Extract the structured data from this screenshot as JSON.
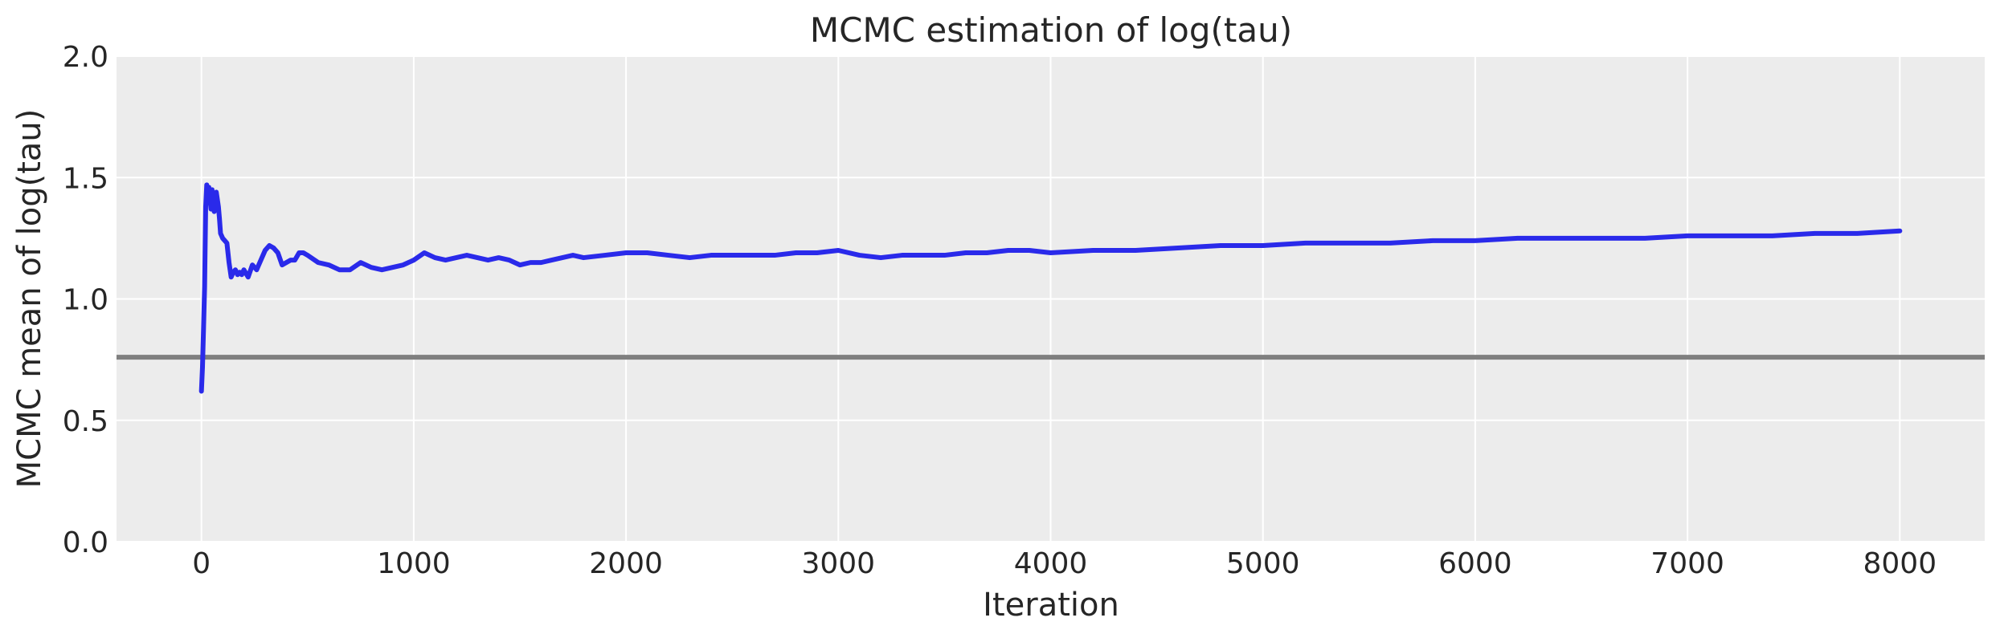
{
  "chart_data": {
    "type": "line",
    "title": "MCMC estimation of log(tau)",
    "xlabel": "Iteration",
    "ylabel": "MCMC mean of log(tau)",
    "xlim": [
      -400,
      8400
    ],
    "ylim": [
      0.0,
      2.0
    ],
    "xticks": [
      0,
      1000,
      2000,
      3000,
      4000,
      5000,
      6000,
      7000,
      8000
    ],
    "xtick_labels": [
      "0",
      "1000",
      "2000",
      "3000",
      "4000",
      "5000",
      "6000",
      "7000",
      "8000"
    ],
    "yticks": [
      0.0,
      0.5,
      1.0,
      1.5,
      2.0
    ],
    "ytick_labels": [
      "0.0",
      "0.5",
      "1.0",
      "1.5",
      "2.0"
    ],
    "grid": true,
    "colors": {
      "background": "#ececec",
      "grid": "#ffffff",
      "series": "#2a2aea",
      "reference": "#7f7f7f"
    },
    "series": [
      {
        "x": [
          0,
          5,
          10,
          15,
          20,
          25,
          30,
          35,
          40,
          45,
          50,
          55,
          60,
          65,
          70,
          75,
          80,
          85,
          90,
          95,
          100,
          110,
          120,
          130,
          140,
          150,
          160,
          170,
          180,
          190,
          200,
          220,
          240,
          260,
          280,
          300,
          320,
          340,
          360,
          380,
          400,
          420,
          440,
          460,
          480,
          500,
          550,
          600,
          650,
          700,
          750,
          800,
          850,
          900,
          950,
          1000,
          1050,
          1100,
          1150,
          1200,
          1250,
          1300,
          1350,
          1400,
          1450,
          1500,
          1550,
          1600,
          1650,
          1700,
          1750,
          1800,
          1900,
          2000,
          2100,
          2200,
          2300,
          2400,
          2500,
          2600,
          2700,
          2800,
          2900,
          3000,
          3100,
          3200,
          3300,
          3400,
          3500,
          3600,
          3700,
          3800,
          3900,
          4000,
          4200,
          4400,
          4600,
          4800,
          5000,
          5200,
          5400,
          5600,
          5800,
          6000,
          6200,
          6400,
          6600,
          6800,
          7000,
          7200,
          7400,
          7600,
          7800,
          8000
        ],
        "y": [
          0.62,
          0.72,
          0.88,
          1.05,
          1.38,
          1.47,
          1.4,
          1.46,
          1.42,
          1.37,
          1.45,
          1.39,
          1.36,
          1.43,
          1.44,
          1.41,
          1.38,
          1.33,
          1.27,
          1.26,
          1.25,
          1.24,
          1.23,
          1.15,
          1.09,
          1.11,
          1.12,
          1.1,
          1.11,
          1.1,
          1.12,
          1.09,
          1.14,
          1.12,
          1.16,
          1.2,
          1.22,
          1.21,
          1.19,
          1.14,
          1.15,
          1.16,
          1.16,
          1.19,
          1.19,
          1.18,
          1.15,
          1.14,
          1.12,
          1.12,
          1.15,
          1.13,
          1.12,
          1.13,
          1.14,
          1.16,
          1.19,
          1.17,
          1.16,
          1.17,
          1.18,
          1.17,
          1.16,
          1.17,
          1.16,
          1.14,
          1.15,
          1.15,
          1.16,
          1.17,
          1.18,
          1.17,
          1.18,
          1.19,
          1.19,
          1.18,
          1.17,
          1.18,
          1.18,
          1.18,
          1.18,
          1.19,
          1.19,
          1.2,
          1.18,
          1.17,
          1.18,
          1.18,
          1.18,
          1.19,
          1.19,
          1.2,
          1.2,
          1.19,
          1.2,
          1.2,
          1.21,
          1.22,
          1.22,
          1.23,
          1.23,
          1.23,
          1.24,
          1.24,
          1.25,
          1.25,
          1.25,
          1.25,
          1.26,
          1.26,
          1.26,
          1.27,
          1.27,
          1.28
        ]
      }
    ],
    "reference_line": {
      "y": 0.76
    }
  }
}
